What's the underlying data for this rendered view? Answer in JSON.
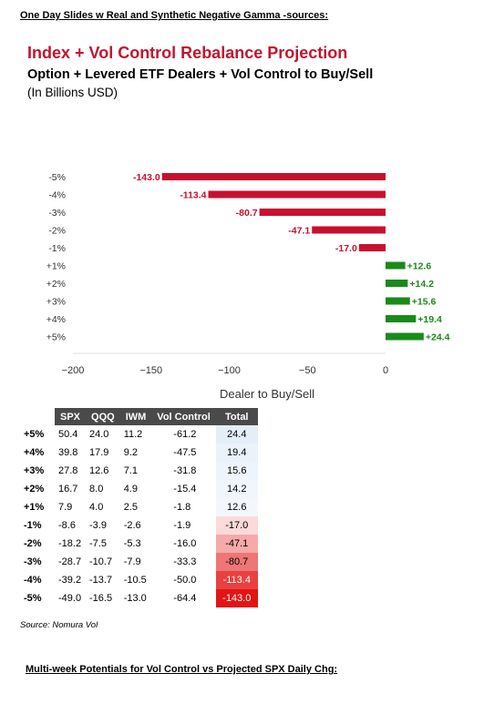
{
  "header": {
    "note": "One Day Slides w Real and Synthetic Negative Gamma -sources:"
  },
  "chart_data": {
    "type": "bar",
    "orientation": "horizontal",
    "title": "Index + Vol Control Rebalance Projection",
    "subtitle": "Option + Levered ETF Dealers + Vol Control to Buy/Sell",
    "units": "(In Billions USD)",
    "xlabel": "Dealer to Buy/Sell",
    "categories": [
      "-5%",
      "-4%",
      "-3%",
      "-2%",
      "-1%",
      "+1%",
      "+2%",
      "+3%",
      "+4%",
      "+5%"
    ],
    "values": [
      -143.0,
      -113.4,
      -80.7,
      -47.1,
      -17.0,
      12.6,
      14.2,
      15.6,
      19.4,
      24.4
    ],
    "value_labels": [
      "-143.0",
      "-113.4",
      "-80.7",
      "-47.1",
      "-17.0",
      "+12.6",
      "+14.2",
      "+15.6",
      "+19.4",
      "+24.4"
    ],
    "xlim": [
      -200,
      0
    ],
    "xticks": [
      -200,
      -150,
      -100,
      -50,
      0
    ],
    "xtick_labels": [
      "−200",
      "−150",
      "−100",
      "−50",
      "0"
    ],
    "colors": {
      "negative": "#c8102e",
      "positive": "#1a8a1a"
    }
  },
  "table": {
    "columns": [
      "",
      "SPX",
      "QQQ",
      "IWM",
      "Vol Control",
      "Total"
    ],
    "rows": [
      {
        "label": "+5%",
        "spx": "50.4",
        "qqq": "24.0",
        "iwm": "11.2",
        "vol": "-61.2",
        "total": "24.4",
        "bg": "#e4eef8",
        "fg": "#000000"
      },
      {
        "label": "+4%",
        "spx": "39.8",
        "qqq": "17.9",
        "iwm": "9.2",
        "vol": "-47.5",
        "total": "19.4",
        "bg": "#eaf2fa",
        "fg": "#000000"
      },
      {
        "label": "+3%",
        "spx": "27.8",
        "qqq": "12.6",
        "iwm": "7.1",
        "vol": "-31.8",
        "total": "15.6",
        "bg": "#eef4fb",
        "fg": "#000000"
      },
      {
        "label": "+2%",
        "spx": "16.7",
        "qqq": "8.0",
        "iwm": "4.9",
        "vol": "-15.4",
        "total": "14.2",
        "bg": "#f0f6fc",
        "fg": "#000000"
      },
      {
        "label": "+1%",
        "spx": "7.9",
        "qqq": "4.0",
        "iwm": "2.5",
        "vol": "-1.8",
        "total": "12.6",
        "bg": "#f3f7fc",
        "fg": "#000000"
      },
      {
        "label": "-1%",
        "spx": "-8.6",
        "qqq": "-3.9",
        "iwm": "-2.6",
        "vol": "-1.9",
        "total": "-17.0",
        "bg": "#fbdada",
        "fg": "#000000"
      },
      {
        "label": "-2%",
        "spx": "-18.2",
        "qqq": "-7.5",
        "iwm": "-5.3",
        "vol": "-16.0",
        "total": "-47.1",
        "bg": "#f5a9a9",
        "fg": "#000000"
      },
      {
        "label": "-3%",
        "spx": "-28.7",
        "qqq": "-10.7",
        "iwm": "-7.9",
        "vol": "-33.3",
        "total": "-80.7",
        "bg": "#ee7676",
        "fg": "#000000"
      },
      {
        "label": "-4%",
        "spx": "-39.2",
        "qqq": "-13.7",
        "iwm": "-10.5",
        "vol": "-50.0",
        "total": "-113.4",
        "bg": "#e94040",
        "fg": "#ffffff"
      },
      {
        "label": "-5%",
        "spx": "-49.0",
        "qqq": "-16.5",
        "iwm": "-13.0",
        "vol": "-64.4",
        "total": "-143.0",
        "bg": "#e31414",
        "fg": "#ffffff"
      }
    ]
  },
  "source": "Source: Nomura Vol",
  "footer": {
    "note": "Multi-week Potentials for Vol Control vs Projected SPX Daily Chg:"
  }
}
